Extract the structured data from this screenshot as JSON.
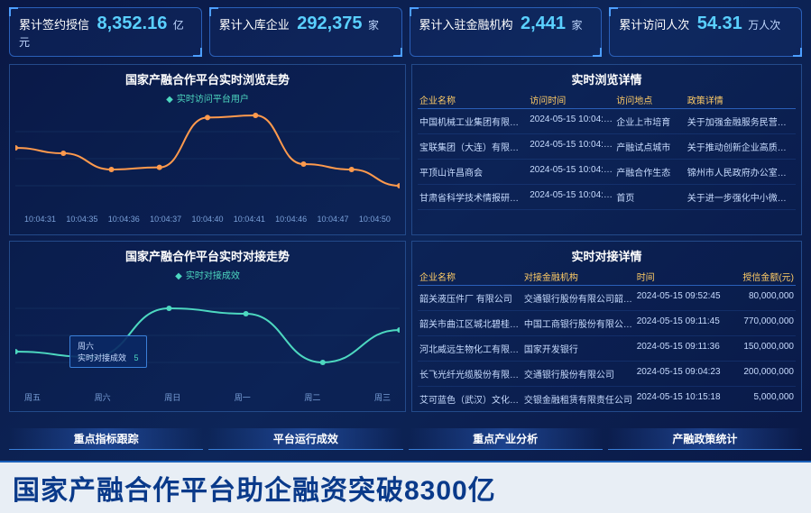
{
  "colors": {
    "accent": "#5ad0ff",
    "line1": "#ff9a4d",
    "line2": "#4dd8c0",
    "gold": "#ffcc66"
  },
  "stats": [
    {
      "label": "累计签约授信",
      "value": "8,352.16",
      "unit": "亿元"
    },
    {
      "label": "累计入库企业",
      "value": "292,375",
      "unit": "家"
    },
    {
      "label": "累计入驻金融机构",
      "value": "2,441",
      "unit": "家"
    },
    {
      "label": "累计访问人次",
      "value": "54.31",
      "unit": "万人次"
    }
  ],
  "chart_top": {
    "title": "国家产融合作平台实时浏览走势",
    "legend": "实时访问平台用户",
    "x_labels": [
      "10:04:31",
      "10:04:35",
      "10:04:36",
      "10:04:37",
      "10:04:40",
      "10:04:41",
      "10:04:46",
      "10:04:47",
      "10:04:50"
    ],
    "series": {
      "color": "#ff9a4d",
      "points": [
        60,
        55,
        40,
        42,
        88,
        90,
        45,
        40,
        25
      ]
    }
  },
  "chart_bottom": {
    "title": "国家产融合作平台实时对接走势",
    "legend": "实时对接成效",
    "x_labels": [
      "周五",
      "周六",
      "周日",
      "周一",
      "周二",
      "周三"
    ],
    "tooltip": {
      "day": "周六",
      "label": "实时对接成效",
      "value": "5"
    },
    "series": {
      "color": "#4dd8c0",
      "points": [
        35,
        30,
        75,
        70,
        25,
        55
      ]
    }
  },
  "table_top": {
    "title": "实时浏览详情",
    "columns": [
      "企业名称",
      "访问时间",
      "访问地点",
      "政策详情"
    ],
    "rows": [
      [
        "中国机械工业集团有限公司",
        "2024-05-15 10:04:41",
        "企业上市培育",
        "关于加强金融服务民营企业的…"
      ],
      [
        "宝联集团（大连）有限公司",
        "2024-05-15 10:04:41",
        "产融试点城市",
        "关于推动创新企业高质量发展"
      ],
      [
        "平顶山许昌商会",
        "2024-05-15 10:04:38",
        "产融合作生态",
        "锦州市人民政府办公室印发文"
      ],
      [
        "甘肃省科学技术情报研究所",
        "2024-05-15 10:04:36",
        "首页",
        "关于进一步强化中小微企业金融"
      ]
    ]
  },
  "table_bottom": {
    "title": "实时对接详情",
    "columns": [
      "企业名称",
      "对接金融机构",
      "时间",
      "授信金额(元)"
    ],
    "rows": [
      [
        "韶关液压件厂 有限公司",
        "交通银行股份有限公司韶关分行",
        "2024-05-15 09:52:45",
        "80,000,000"
      ],
      [
        "韶关市曲江区城北碧桂园地产",
        "中国工商银行股份有限公司韶",
        "2024-05-15 09:11:45",
        "770,000,000"
      ],
      [
        "河北威远生物化工有限公司",
        "国家开发银行",
        "2024-05-15 09:11:36",
        "150,000,000"
      ],
      [
        "长飞光纤光缆股份有限公司",
        "交通银行股份有限公司",
        "2024-05-15 09:04:23",
        "200,000,000"
      ],
      [
        "艾可蓝色（武汉）文化传媒公司",
        "交银金融租赁有限责任公司",
        "2024-05-15 10:15:18",
        "5,000,000"
      ]
    ]
  },
  "bottom_tabs": [
    "重点指标跟踪",
    "平台运行成效",
    "重点产业分析",
    "产融政策统计"
  ],
  "news": "国家产融合作平台助企融资突破8300亿"
}
